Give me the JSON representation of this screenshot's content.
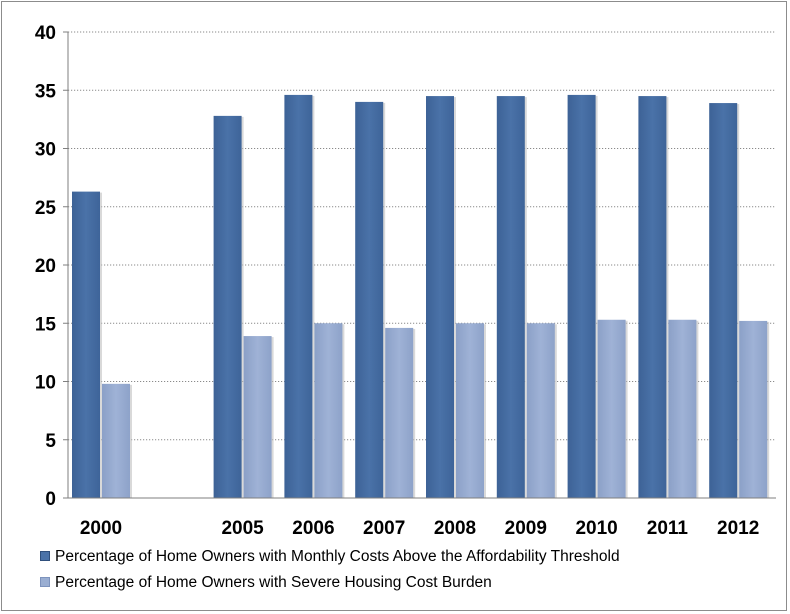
{
  "chart_data": {
    "type": "bar",
    "categories": [
      "2000",
      "",
      "2005",
      "2006",
      "2007",
      "2008",
      "2009",
      "2010",
      "2011",
      "2012"
    ],
    "series": [
      {
        "name": "Percentage of Home Owners with Monthly Costs Above the Affordability Threshold",
        "color": "#4a72a8",
        "values": [
          26.3,
          null,
          32.8,
          34.6,
          34.0,
          34.5,
          34.5,
          34.6,
          34.5,
          33.9
        ]
      },
      {
        "name": "Percentage of Home Owners with Severe Housing Cost Burden",
        "color": "#9aaed2",
        "values": [
          9.8,
          null,
          13.9,
          15.0,
          14.6,
          15.0,
          15.0,
          15.3,
          15.3,
          15.2
        ]
      }
    ],
    "yticks": [
      "0",
      "5",
      "10",
      "15",
      "20",
      "25",
      "30",
      "35",
      "40"
    ],
    "ylim": [
      0,
      40
    ],
    "grid": true,
    "legend_position": "bottom",
    "title": "",
    "xlabel": "",
    "ylabel": ""
  }
}
